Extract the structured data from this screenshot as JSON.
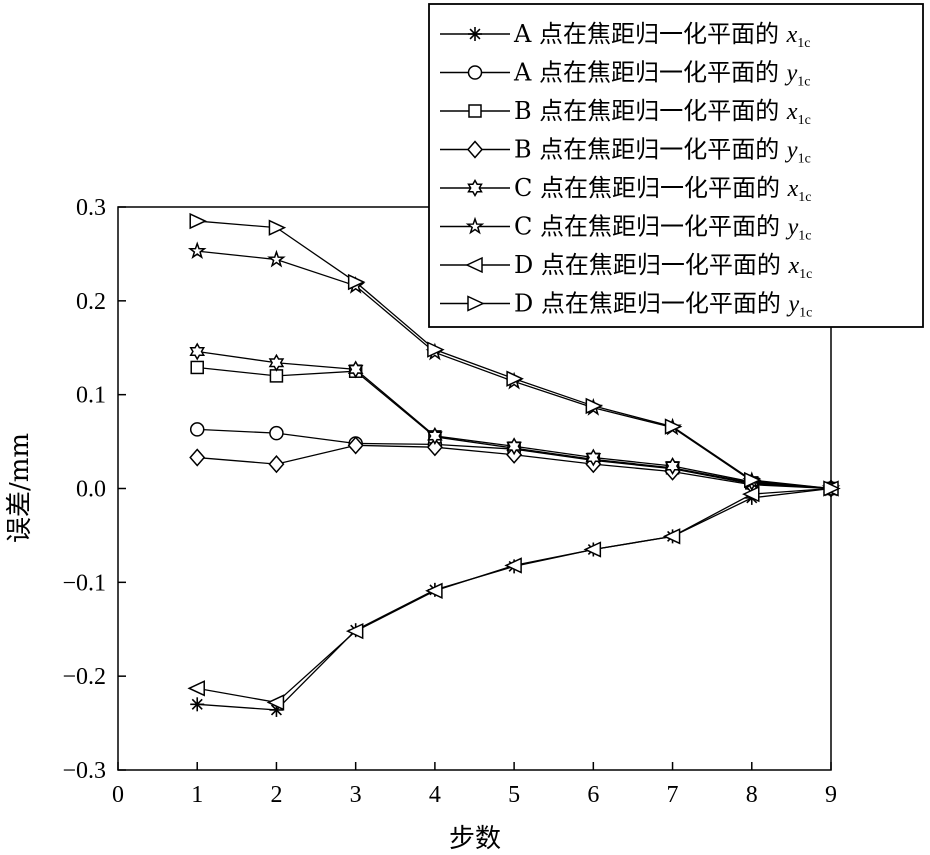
{
  "chart_data": {
    "type": "line",
    "title": "",
    "xlabel": "步数",
    "ylabel": "误差/mm",
    "xlim": [
      0,
      9
    ],
    "ylim": [
      -0.3,
      0.3
    ],
    "xticks": [
      0,
      1,
      2,
      3,
      4,
      5,
      6,
      7,
      8,
      9
    ],
    "yticks": [
      0.3,
      0.2,
      0.1,
      0.0,
      -0.1,
      -0.2,
      -0.3
    ],
    "ytick_labels": [
      "0.3",
      "0.2",
      "0.1",
      "0.0",
      "−0.1",
      "−0.2",
      "−0.3"
    ],
    "grid": false,
    "legend_position": "top-right",
    "x": [
      1,
      2,
      3,
      4,
      5,
      6,
      7,
      8,
      9
    ],
    "series": [
      {
        "name": "A 点在焦距归一化平面的 x1c",
        "legend_prefix": "A 点在焦距归一化平面的 ",
        "var": "x",
        "sub": "1c",
        "marker": "asterisk",
        "values": [
          -0.23,
          -0.236,
          -0.151,
          -0.108,
          -0.083,
          -0.065,
          -0.051,
          -0.01,
          0.0
        ]
      },
      {
        "name": "A 点在焦距归一化平面的 y1c",
        "legend_prefix": "A 点在焦距归一化平面的 ",
        "var": "y",
        "sub": "1c",
        "marker": "circle",
        "values": [
          0.063,
          0.059,
          0.048,
          0.047,
          0.042,
          0.03,
          0.021,
          0.005,
          0.0
        ]
      },
      {
        "name": "B 点在焦距归一化平面的 x1c",
        "legend_prefix": "B 点在焦距归一化平面的 ",
        "var": "x",
        "sub": "1c",
        "marker": "square",
        "values": [
          0.129,
          0.12,
          0.125,
          0.055,
          0.043,
          0.031,
          0.022,
          0.006,
          0.0
        ]
      },
      {
        "name": "B 点在焦距归一化平面的 y1c",
        "legend_prefix": "B 点在焦距归一化平面的 ",
        "var": "y",
        "sub": "1c",
        "marker": "diamond",
        "values": [
          0.033,
          0.026,
          0.046,
          0.044,
          0.036,
          0.026,
          0.018,
          0.004,
          0.0
        ]
      },
      {
        "name": "C 点在焦距归一化平面的 x1c",
        "legend_prefix": "C 点在焦距归一化平面的 ",
        "var": "x",
        "sub": "1c",
        "marker": "hexagram",
        "values": [
          0.146,
          0.134,
          0.127,
          0.056,
          0.045,
          0.033,
          0.024,
          0.007,
          0.0
        ]
      },
      {
        "name": "C 点在焦距归一化平面的 y1c",
        "legend_prefix": "C 点在焦距归一化平面的 ",
        "var": "y",
        "sub": "1c",
        "marker": "pentagram",
        "values": [
          0.253,
          0.244,
          0.216,
          0.145,
          0.114,
          0.086,
          0.065,
          0.008,
          0.0
        ]
      },
      {
        "name": "D 点在焦距归一化平面的 x1c",
        "legend_prefix": "D 点在焦距归一化平面的 ",
        "var": "x",
        "sub": "1c",
        "marker": "triangle-left",
        "values": [
          -0.213,
          -0.228,
          -0.152,
          -0.109,
          -0.082,
          -0.065,
          -0.051,
          -0.006,
          0.0
        ]
      },
      {
        "name": "D 点在焦距归一化平面的 y1c",
        "legend_prefix": "D 点在焦距归一化平面的 ",
        "var": "y",
        "sub": "1c",
        "marker": "triangle-right",
        "values": [
          0.285,
          0.278,
          0.22,
          0.148,
          0.117,
          0.088,
          0.066,
          0.009,
          0.0
        ]
      }
    ]
  }
}
